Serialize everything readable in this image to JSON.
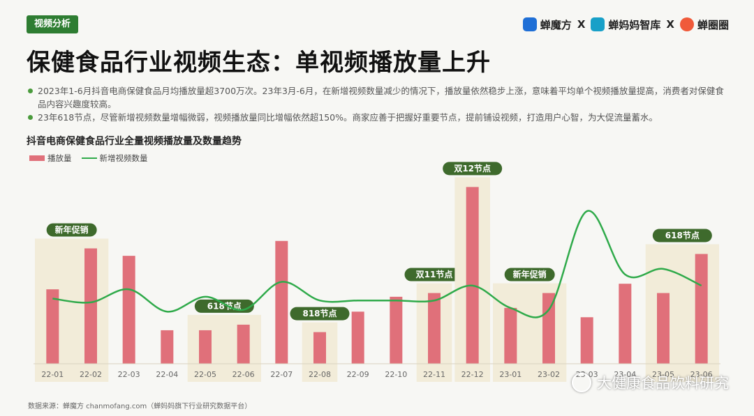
{
  "header": {
    "tag": "视频分析",
    "brands": [
      "蝉魔方",
      "蝉妈妈智库",
      "蝉圈圈"
    ],
    "separator": "X",
    "title": "保健食品行业视频生态：单视频播放量上升"
  },
  "bullets": [
    "2023年1-6月抖音电商保健食品月均播放量超3700万次。23年3月-6月，在新增视频数量减少的情况下，播放量依然稳步上涨，意味着平均单个视频播放量提高，消费者对保健食品内容兴趣度较高。",
    "23年618节点，尽管新增视频数量增幅微弱，视频播放量同比增幅依然超150%。商家应善于把握好重要节点，提前铺设视频，打造用户心智，为大促流量蓄水。"
  ],
  "chart_data": {
    "type": "bar",
    "title": "抖音电商保健食品行业全量视频播放量及数量趋势",
    "categories": [
      "22-01",
      "22-02",
      "22-03",
      "22-04",
      "22-05",
      "22-06",
      "22-07",
      "22-08",
      "22-09",
      "22-10",
      "22-11",
      "22-12",
      "23-01",
      "23-02",
      "23-03",
      "23-04",
      "23-05",
      "23-06"
    ],
    "series": [
      {
        "name": "播放量",
        "type": "bar",
        "color": "#e0707a",
        "values": [
          40,
          62,
          58,
          18,
          18,
          21,
          66,
          17,
          28,
          36,
          38,
          95,
          30,
          38,
          25,
          43,
          38,
          59
        ]
      },
      {
        "name": "新增视频数量",
        "type": "line",
        "color": "#2faa4a",
        "values": [
          35,
          33,
          40,
          28,
          36,
          29,
          44,
          34,
          34,
          34,
          34,
          42,
          30,
          29,
          82,
          48,
          51,
          42
        ]
      }
    ],
    "highlights": [
      {
        "label": "新年促销",
        "categories": [
          "22-01",
          "22-02"
        ]
      },
      {
        "label": "618节点",
        "categories": [
          "22-05",
          "22-06"
        ]
      },
      {
        "label": "818节点",
        "categories": [
          "22-08"
        ]
      },
      {
        "label": "双11节点",
        "categories": [
          "22-11"
        ]
      },
      {
        "label": "双12节点",
        "categories": [
          "22-12"
        ]
      },
      {
        "label": "新年促销",
        "categories": [
          "23-01",
          "23-02"
        ]
      },
      {
        "label": "618节点",
        "categories": [
          "23-05",
          "23-06"
        ]
      }
    ],
    "ylim": [
      0,
      100
    ],
    "legend": "top-left",
    "grid": false
  },
  "source": "数据来源：蝉魔方 chanmofang.com（蝉妈妈旗下行业研究数据平台）",
  "watermark": "大健康食品饮料研究",
  "colors": {
    "accent": "#2e7d32",
    "bar": "#e0707a",
    "line": "#2faa4a",
    "highlight_bg": "#f2ecd9",
    "highlight_label": "#3e6a2c"
  }
}
